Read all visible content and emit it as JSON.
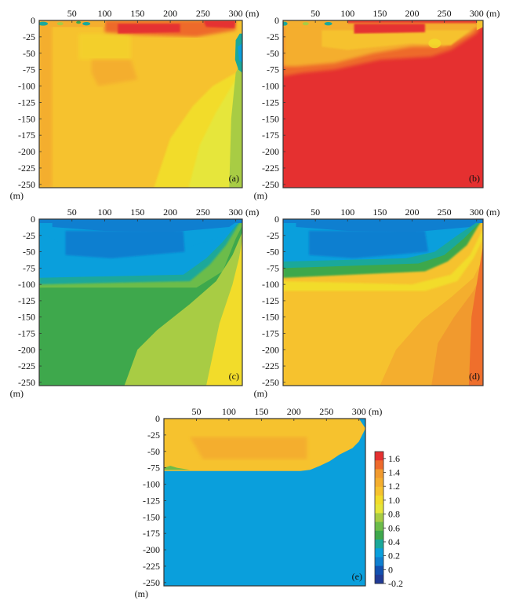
{
  "palette": {
    "c8": "#e53030",
    "c7": "#ee6a2c",
    "c6": "#f19a2e",
    "c5": "#f4ae2e",
    "c4": "#f6c22e",
    "c3": "#f2dc2a",
    "c2": "#e6e63a",
    "c1": "#a8cc44",
    "g2": "#6cbc4a",
    "g1": "#3ea84c",
    "gt": "#1aa89a",
    "b1": "#0a9fdc",
    "b2": "#0f7fd0",
    "b3": "#1250b0",
    "b4": "#203a96",
    "frame": "#333333"
  },
  "chart_data": [
    {
      "type": "heatmap",
      "panel_label": "(a)",
      "x_unit": "(m)",
      "y_unit": "(m)",
      "x_ticks": [
        50,
        100,
        150,
        200,
        250,
        300
      ],
      "y_ticks": [
        0,
        -25,
        -50,
        -75,
        -100,
        -125,
        -150,
        -175,
        -200,
        -225,
        -250
      ],
      "xlim": [
        0,
        310
      ],
      "ylim": [
        -255,
        0
      ],
      "field_description_levels": [
        1.6,
        1.2,
        1.0,
        0.8,
        0.6,
        0.2
      ],
      "dominant_value": 1.0
    },
    {
      "type": "heatmap",
      "panel_label": "(b)",
      "x_unit": "(m)",
      "y_unit": "(m)",
      "x_ticks": [
        50,
        100,
        150,
        200,
        250,
        300
      ],
      "y_ticks": [
        0,
        -25,
        -50,
        -75,
        -100,
        -125,
        -150,
        -175,
        -200,
        -225,
        -250
      ],
      "xlim": [
        0,
        310
      ],
      "ylim": [
        -255,
        0
      ],
      "dominant_value": 1.6
    },
    {
      "type": "heatmap",
      "panel_label": "(c)",
      "x_unit": "(m)",
      "y_unit": "(m)",
      "x_ticks": [
        50,
        100,
        150,
        200,
        250,
        300
      ],
      "y_ticks": [
        0,
        -25,
        -50,
        -75,
        -100,
        -125,
        -150,
        -175,
        -200,
        -225,
        -250
      ],
      "xlim": [
        0,
        310
      ],
      "ylim": [
        -255,
        0
      ],
      "dominant_value": 0.4
    },
    {
      "type": "heatmap",
      "panel_label": "(d)",
      "x_unit": "(m)",
      "y_unit": "(m)",
      "x_ticks": [
        50,
        100,
        150,
        200,
        250,
        300
      ],
      "y_ticks": [
        0,
        -25,
        -50,
        -75,
        -100,
        -125,
        -150,
        -175,
        -200,
        -225,
        -250
      ],
      "xlim": [
        0,
        310
      ],
      "ylim": [
        -255,
        0
      ],
      "dominant_value": 0.8
    },
    {
      "type": "heatmap",
      "panel_label": "(e)",
      "x_unit": "(m)",
      "y_unit": "(m)",
      "x_ticks": [
        50,
        100,
        150,
        200,
        250,
        300
      ],
      "y_ticks": [
        0,
        -25,
        -50,
        -75,
        -100,
        -125,
        -150,
        -175,
        -200,
        -225,
        -250
      ],
      "xlim": [
        0,
        310
      ],
      "ylim": [
        -255,
        0
      ],
      "dominant_value": 0.2,
      "colorbar": {
        "tick_labels": [
          "1.6",
          "1.4",
          "1.2",
          "1.0",
          "0.8",
          "0.6",
          "0.4",
          "0.2",
          "0",
          "-0.2"
        ],
        "range": [
          -0.2,
          1.7
        ]
      }
    }
  ]
}
